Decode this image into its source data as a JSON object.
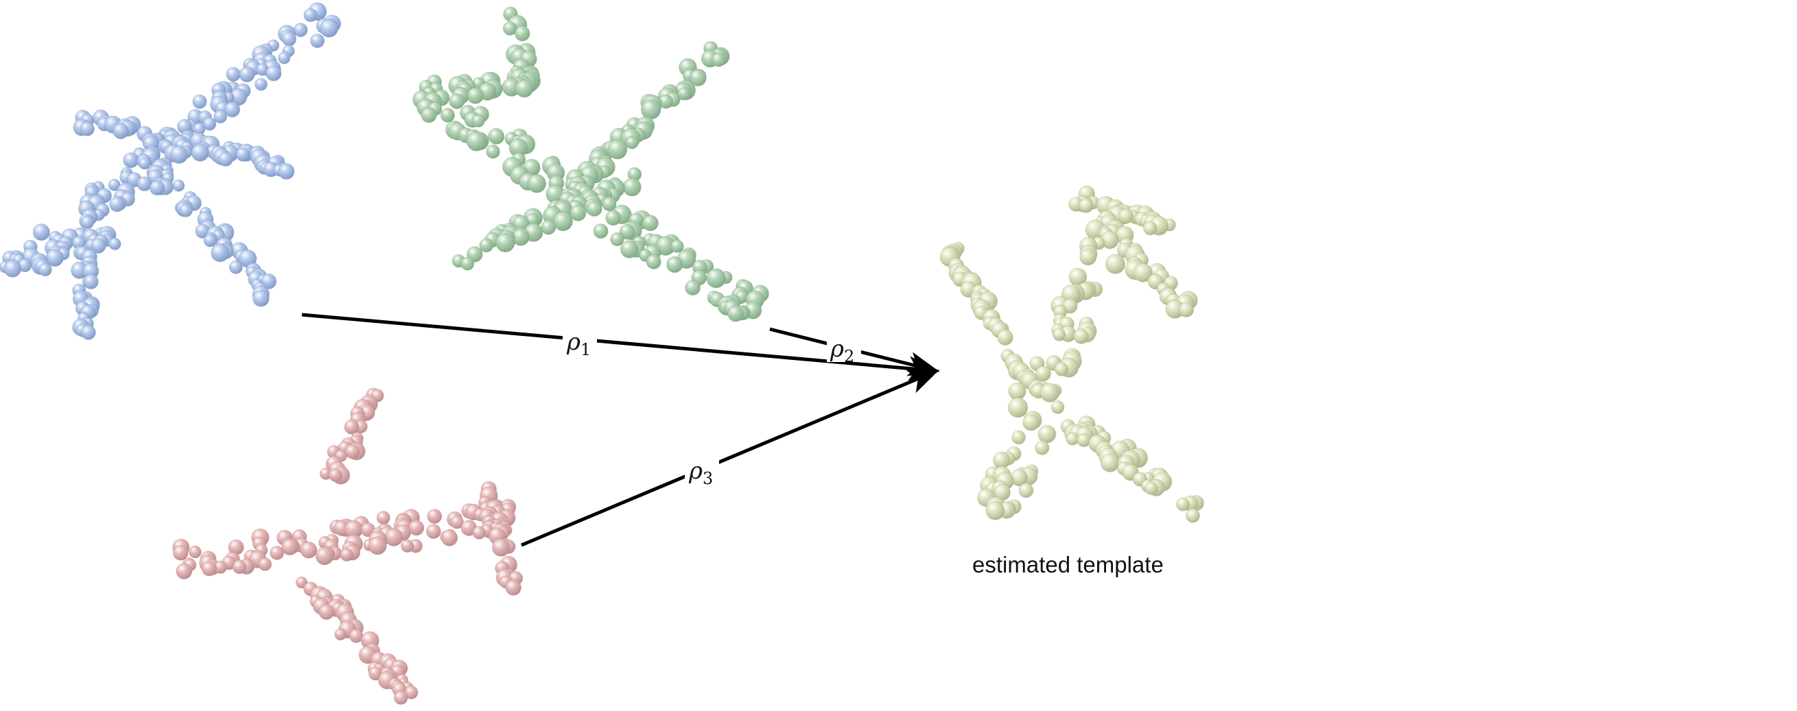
{
  "shapes": [
    {
      "id": "plane-1",
      "color": "#b9cdee",
      "shadow": "#7f97c4",
      "icon": "airplane-point-cloud"
    },
    {
      "id": "plane-2",
      "color": "#b8d6b8",
      "shadow": "#7fa884",
      "icon": "airplane-point-cloud"
    },
    {
      "id": "plane-3",
      "color": "#e9bcbc",
      "shadow": "#b98a8c",
      "icon": "airplane-point-cloud"
    },
    {
      "id": "template",
      "color": "#e3e6c4",
      "shadow": "#aeb28a",
      "icon": "airplane-point-cloud"
    }
  ],
  "arrows": [
    {
      "from": "plane-1",
      "to": "template",
      "label": {
        "symbol": "ρ",
        "subscript": "1"
      }
    },
    {
      "from": "plane-2",
      "to": "template",
      "label": {
        "symbol": "ρ",
        "subscript": "2"
      }
    },
    {
      "from": "plane-3",
      "to": "template",
      "label": {
        "symbol": "ρ",
        "subscript": "3"
      }
    }
  ],
  "caption": "estimated template",
  "arrow_color": "#000000"
}
